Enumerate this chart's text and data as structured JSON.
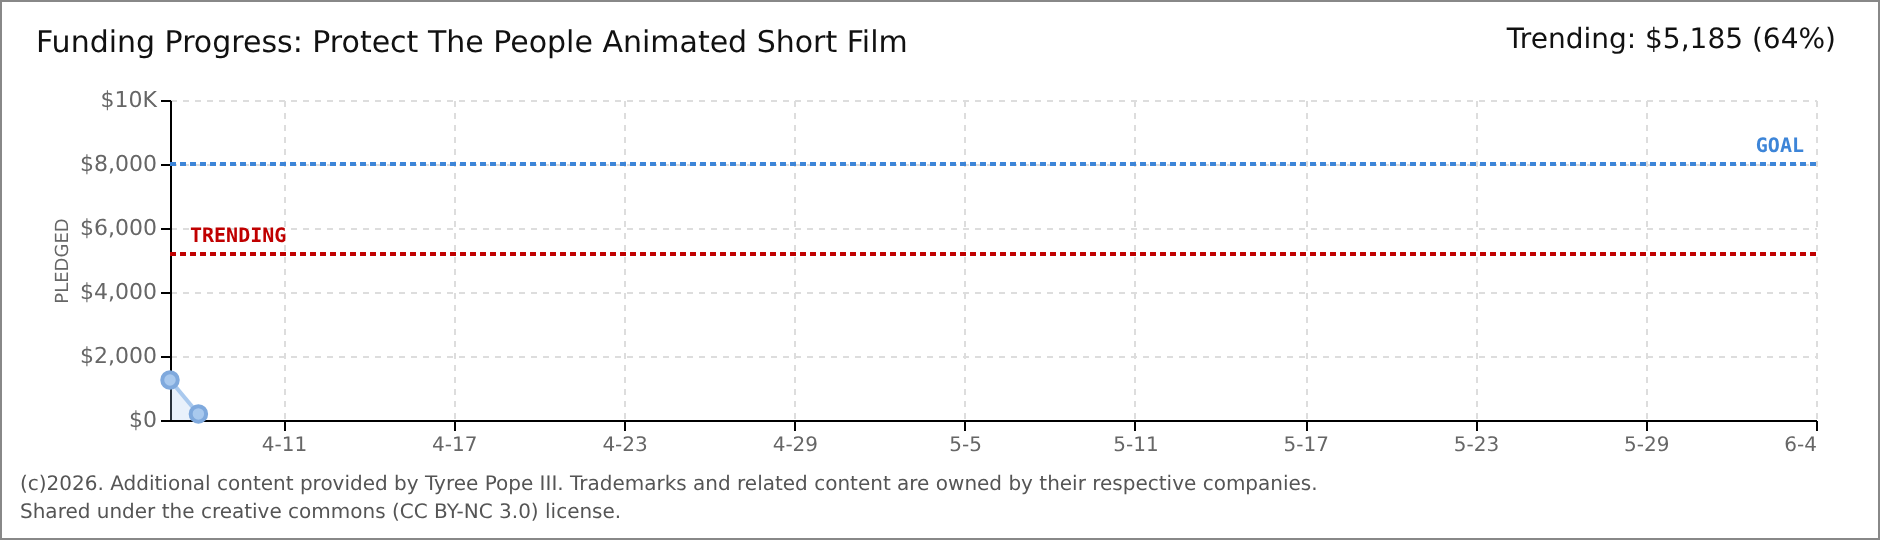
{
  "chart_data": {
    "type": "area",
    "title": "Funding Progress: Protect The People Animated Short Film",
    "subtitle": "Trending: $5,185 (64%)",
    "ylabel": "PLEDGED",
    "x": [
      "2026-04-07",
      "2026-04-08"
    ],
    "series": [
      {
        "color": "#a9c9ee",
        "values": [
          1250,
          190
        ]
      }
    ],
    "marker": "circle",
    "xlim": [
      "2026-04-07",
      "2026-06-04"
    ],
    "xticks": [
      {
        "value": "2026-04-11",
        "label": "4-11"
      },
      {
        "value": "2026-04-17",
        "label": "4-17"
      },
      {
        "value": "2026-04-23",
        "label": "4-23"
      },
      {
        "value": "2026-04-29",
        "label": "4-29"
      },
      {
        "value": "2026-05-05",
        "label": "5-5"
      },
      {
        "value": "2026-05-11",
        "label": "5-11"
      },
      {
        "value": "2026-05-17",
        "label": "5-17"
      },
      {
        "value": "2026-05-23",
        "label": "5-23"
      },
      {
        "value": "2026-05-29",
        "label": "5-29"
      },
      {
        "value": "2026-06-04",
        "label": "6-4"
      }
    ],
    "ylim": [
      0,
      10000
    ],
    "yticks": [
      {
        "value": 0,
        "label": "$0"
      },
      {
        "value": 2000,
        "label": "$2,000"
      },
      {
        "value": 4000,
        "label": "$4,000"
      },
      {
        "value": 6000,
        "label": "$6,000"
      },
      {
        "value": 8000,
        "label": "$8,000"
      },
      {
        "value": 10000,
        "label": "$10K"
      }
    ],
    "grid": true,
    "ref_lines": [
      {
        "axis": "y",
        "value": 8000,
        "label": "GOAL",
        "color": "#3d85d8",
        "line_style": "dotted"
      },
      {
        "axis": "y",
        "value": 5185,
        "label": "TRENDING",
        "color": "#c00000",
        "line_style": "dotted"
      }
    ],
    "annotations": [
      "(c)2026. Additional content provided by Tyree Pope III. Trademarks and related content are owned by their respective companies.",
      "Shared under the creative commons (CC BY-NC 3.0) license."
    ]
  }
}
